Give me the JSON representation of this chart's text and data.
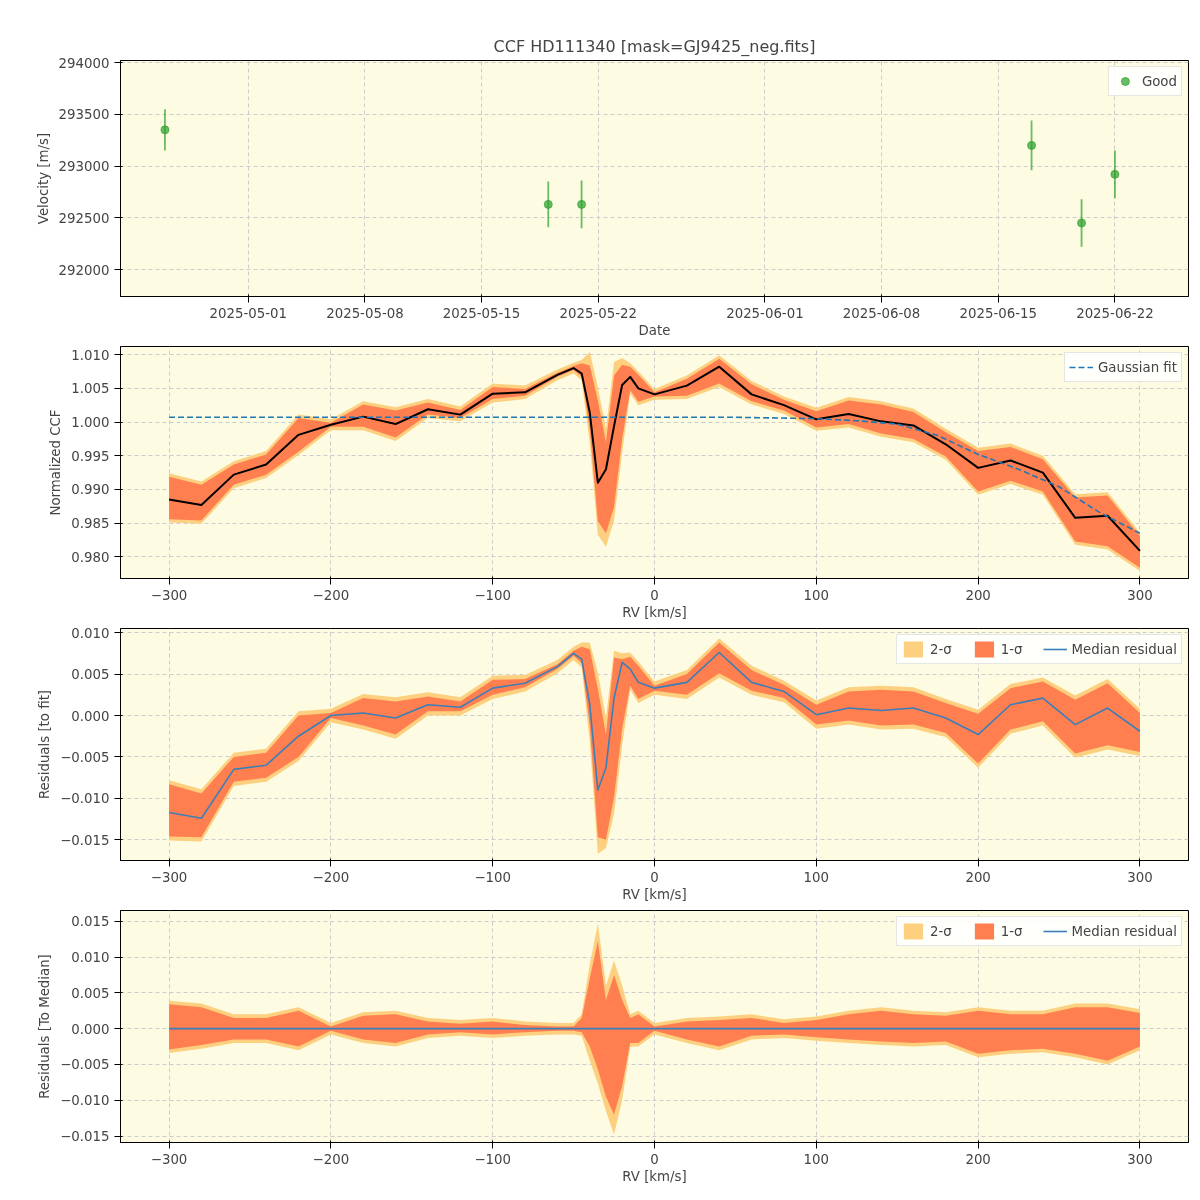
{
  "chart_data": [
    {
      "type": "scatter",
      "title": "CCF HD111340 [mask=GJ9425_neg.fits]",
      "xlabel": "Date",
      "ylabel": "Velocity [m/s]",
      "marker": "circle",
      "grid": true,
      "legend": "top right",
      "x": [
        "2025-04-26",
        "2025-05-19",
        "2025-05-21",
        "2025-06-17",
        "2025-06-20",
        "2025-06-22"
      ],
      "xlim": [
        "2025-04-23T08:00",
        "2025-06-26T10:00"
      ],
      "xticks": [
        "2025-05-01",
        "2025-05-08",
        "2025-05-15",
        "2025-05-22",
        "2025-06-01",
        "2025-06-08",
        "2025-06-15",
        "2025-06-22"
      ],
      "ylim": [
        291740,
        294020
      ],
      "yticks": [
        292000,
        292500,
        293000,
        293500,
        294000
      ],
      "series": [
        {
          "name": "Good",
          "color": "#2ca02c",
          "values": [
            293350,
            292630,
            292630,
            293200,
            292450,
            292920
          ],
          "errors": [
            200,
            220,
            230,
            240,
            230,
            230
          ]
        }
      ]
    },
    {
      "type": "line",
      "xlabel": "RV [km/s]",
      "ylabel": "Normalized CCF",
      "grid": true,
      "legend": "top right",
      "x": [
        -300,
        -280,
        -260,
        -240,
        -220,
        -200,
        -180,
        -160,
        -140,
        -120,
        -100,
        -80,
        -60,
        -50,
        -45,
        -40,
        -35,
        -30,
        -25,
        -20,
        -15,
        -10,
        0,
        20,
        40,
        60,
        80,
        100,
        120,
        140,
        160,
        180,
        200,
        220,
        240,
        260,
        280,
        300
      ],
      "xlim": [
        -330,
        330
      ],
      "xticks": [
        {
          "value": -300,
          "label": "−300"
        },
        {
          "value": -200,
          "label": "−200"
        },
        {
          "value": -100,
          "label": "−100"
        },
        0,
        100,
        200,
        300
      ],
      "ylim": [
        0.9768,
        1.0112
      ],
      "yticks": [
        {
          "value": 0.98,
          "label": "0.980"
        },
        {
          "value": 0.985,
          "label": "0.985"
        },
        {
          "value": 0.99,
          "label": "0.990"
        },
        {
          "value": 0.995,
          "label": "0.995"
        },
        {
          "value": 1.0,
          "label": "1.000"
        },
        {
          "value": 1.005,
          "label": "1.005"
        },
        {
          "value": 1.01,
          "label": "1.010"
        }
      ],
      "series": [
        {
          "type": "area",
          "color": "#fdd080",
          "values": [
            null,
            null,
            null,
            null,
            null,
            null,
            null,
            null,
            null,
            null,
            null,
            null,
            null,
            null,
            null,
            null,
            null,
            null,
            null,
            null,
            null,
            null,
            null,
            null,
            null,
            null,
            null,
            null,
            null,
            null,
            null,
            null,
            null,
            null,
            null,
            null,
            null,
            null
          ],
          "lower": [
            0.9851,
            0.9849,
            0.9902,
            0.9917,
            0.9951,
            0.9988,
            0.9988,
            0.9972,
            1.0006,
            1.0001,
            1.0029,
            1.0034,
            1.0062,
            1.0072,
            1.0062,
            0.9969,
            0.9833,
            0.9815,
            0.9854,
            0.9955,
            1.0042,
            1.0025,
            1.0033,
            1.0034,
            1.0052,
            1.0026,
            1.0012,
            0.9987,
            0.9992,
            0.9978,
            0.997,
            0.9944,
            0.9892,
            0.9908,
            0.9892,
            0.9818,
            0.9811,
            0.9779
          ],
          "upper": [
            0.9924,
            0.9912,
            0.9942,
            0.9957,
            1.0011,
            1.0004,
            1.0031,
            1.0022,
            1.0034,
            1.0023,
            1.0057,
            1.0054,
            1.0078,
            1.0088,
            1.0092,
            1.0104,
            1.0052,
            0.999,
            1.0089,
            1.0095,
            1.0087,
            1.0075,
            1.0049,
            1.0069,
            1.0099,
            1.0061,
            1.0038,
            1.0021,
            1.0037,
            1.0031,
            1.002,
            0.999,
            0.9962,
            0.9968,
            0.995,
            0.9893,
            0.9896,
            0.9836
          ]
        },
        {
          "type": "area",
          "color": "#ff7f50",
          "values": [
            null,
            null,
            null,
            null,
            null,
            null,
            null,
            null,
            null,
            null,
            null,
            null,
            null,
            null,
            null,
            null,
            null,
            null,
            null,
            null,
            null,
            null,
            null,
            null,
            null,
            null,
            null,
            null,
            null,
            null,
            null,
            null,
            null,
            null,
            null,
            null,
            null,
            null
          ],
          "lower": [
            0.9856,
            0.9854,
            0.9907,
            0.9922,
            0.9956,
            0.9993,
            0.9993,
            0.9977,
            1.0011,
            1.0006,
            1.0034,
            1.0039,
            1.0067,
            1.0077,
            1.0067,
            0.9989,
            0.9853,
            0.9835,
            0.9874,
            0.9975,
            1.0047,
            1.003,
            1.0038,
            1.0039,
            1.0057,
            1.0031,
            1.0017,
            0.9992,
            0.9997,
            0.9983,
            0.9975,
            0.9949,
            0.9897,
            0.9913,
            0.9897,
            0.9823,
            0.9816,
            0.9784
          ],
          "upper": [
            0.9919,
            0.9907,
            0.9937,
            0.9952,
            1.0006,
            0.9999,
            1.0026,
            1.0017,
            1.0029,
            1.0018,
            1.0052,
            1.0049,
            1.0073,
            1.0083,
            1.0087,
            1.0084,
            1.0032,
            0.997,
            1.0069,
            1.0085,
            1.0082,
            1.007,
            1.0044,
            1.0064,
            1.0094,
            1.0056,
            1.0033,
            1.0016,
            1.0032,
            1.0026,
            1.0015,
            0.9985,
            0.9957,
            0.9963,
            0.9945,
            0.9888,
            0.9891,
            0.9831
          ]
        },
        {
          "type": "line",
          "color": "#000000",
          "values": [
            0.9885,
            0.9877,
            0.9922,
            0.9937,
            0.9981,
            0.9996,
            1.0008,
            0.9997,
            1.0019,
            1.0011,
            1.0042,
            1.0044,
            1.007,
            1.008,
            1.0072,
            1.0014,
            0.991,
            0.993,
            0.9994,
            1.0055,
            1.0067,
            1.005,
            1.0041,
            1.0054,
            1.0082,
            1.0041,
            1.0025,
            1.0004,
            1.0012,
            1.0001,
            0.9995,
            0.9967,
            0.9932,
            0.9943,
            0.9925,
            0.9858,
            0.9861,
            0.9809
          ]
        },
        {
          "type": "line",
          "name": "Gaussian fit",
          "color": "#1f77b4",
          "line_style": "dashed",
          "x": [
            -300,
            -200,
            -100,
            0,
            50,
            100,
            125,
            150,
            175,
            200,
            225,
            250,
            275,
            300
          ],
          "values": [
            1.0007,
            1.0007,
            1.0007,
            1.0007,
            1.0007,
            1.0005,
            1.0002,
            0.9997,
            0.998,
            0.9952,
            0.993,
            0.9904,
            0.9866,
            0.9835
          ]
        }
      ]
    },
    {
      "type": "line",
      "xlabel": "RV [km/s]",
      "ylabel": "Residuals [to fit]",
      "grid": true,
      "legend": "top right",
      "x": [
        -300,
        -280,
        -260,
        -240,
        -220,
        -200,
        -180,
        -160,
        -140,
        -120,
        -100,
        -80,
        -60,
        -50,
        -45,
        -40,
        -35,
        -30,
        -25,
        -20,
        -15,
        -10,
        0,
        20,
        40,
        60,
        80,
        100,
        120,
        140,
        160,
        180,
        200,
        220,
        240,
        260,
        280,
        300
      ],
      "xlim": [
        -330,
        330
      ],
      "xticks": [
        {
          "value": -300,
          "label": "−300"
        },
        {
          "value": -200,
          "label": "−200"
        },
        {
          "value": -100,
          "label": "−100"
        },
        0,
        100,
        200,
        300
      ],
      "ylim": [
        -0.0175,
        0.0105
      ],
      "yticks": [
        {
          "value": -0.015,
          "label": "−0.015"
        },
        {
          "value": -0.01,
          "label": "−0.010"
        },
        {
          "value": -0.005,
          "label": "−0.005"
        },
        {
          "value": 0,
          "label": "0.000"
        },
        {
          "value": 0.005,
          "label": "0.005"
        },
        {
          "value": 0.01,
          "label": "0.010"
        }
      ],
      "series": [
        {
          "type": "area",
          "name": "2-σ",
          "color": "#fdd080",
          "values": [
            null,
            null,
            null,
            null,
            null,
            null,
            null,
            null,
            null,
            null,
            null,
            null,
            null,
            null,
            null,
            null,
            null,
            null,
            null,
            null,
            null,
            null,
            null,
            null,
            null,
            null,
            null,
            null,
            null,
            null,
            null,
            null,
            null,
            null,
            null,
            null,
            null,
            null
          ],
          "lower": [
            -0.0151,
            -0.0152,
            -0.0085,
            -0.008,
            -0.0055,
            -0.0008,
            -0.0017,
            -0.0028,
            0.0,
            0.0,
            0.002,
            0.0029,
            0.0051,
            0.0067,
            0.0058,
            -0.0032,
            -0.0167,
            -0.016,
            -0.0119,
            -0.0036,
            0.0031,
            0.0015,
            0.0025,
            0.002,
            0.0046,
            0.0025,
            0.0016,
            -0.0016,
            -0.0011,
            -0.0017,
            -0.0016,
            -0.0026,
            -0.0063,
            -0.0022,
            -0.0012,
            -0.0051,
            -0.0041,
            -0.0049
          ],
          "upper": [
            -0.0078,
            -0.0089,
            -0.0045,
            -0.004,
            0.0005,
            0.0008,
            0.0026,
            0.0022,
            0.0028,
            0.0022,
            0.0048,
            0.0049,
            0.0067,
            0.0083,
            0.0088,
            0.0088,
            0.0052,
            -0.0003,
            0.0078,
            0.0075,
            0.0076,
            0.0065,
            0.0041,
            0.0055,
            0.0093,
            0.006,
            0.0042,
            0.0018,
            0.0034,
            0.0036,
            0.0034,
            0.002,
            0.0007,
            0.0038,
            0.0046,
            0.0024,
            0.0044,
            0.0008
          ]
        },
        {
          "type": "area",
          "name": "1-σ",
          "color": "#ff7f50",
          "values": [
            null,
            null,
            null,
            null,
            null,
            null,
            null,
            null,
            null,
            null,
            null,
            null,
            null,
            null,
            null,
            null,
            null,
            null,
            null,
            null,
            null,
            null,
            null,
            null,
            null,
            null,
            null,
            null,
            null,
            null,
            null,
            null,
            null,
            null,
            null,
            null,
            null,
            null
          ],
          "lower": [
            -0.0146,
            -0.0147,
            -0.008,
            -0.0075,
            -0.005,
            -0.0003,
            -0.0012,
            -0.0023,
            0.0005,
            0.0005,
            0.0025,
            0.0034,
            0.0056,
            0.0072,
            0.0063,
            -0.0012,
            -0.0147,
            -0.015,
            -0.0099,
            -0.0016,
            0.0036,
            0.002,
            0.003,
            0.0025,
            0.0051,
            0.003,
            0.0021,
            -0.0011,
            -0.0006,
            -0.0012,
            -0.0011,
            -0.0021,
            -0.0058,
            -0.0017,
            -0.0007,
            -0.0046,
            -0.0036,
            -0.0044
          ],
          "upper": [
            -0.0083,
            -0.0094,
            -0.005,
            -0.0045,
            0.0,
            0.0003,
            0.0021,
            0.0017,
            0.0023,
            0.0017,
            0.0043,
            0.0044,
            0.0062,
            0.0078,
            0.0083,
            0.008,
            0.0032,
            -0.0023,
            0.007,
            0.0068,
            0.0071,
            0.006,
            0.0036,
            0.005,
            0.0088,
            0.0055,
            0.0037,
            0.0013,
            0.0029,
            0.0031,
            0.0029,
            0.0015,
            0.0002,
            0.0033,
            0.0041,
            0.0019,
            0.0039,
            0.0003
          ]
        },
        {
          "type": "line",
          "name": "Median residual",
          "color": "#3a7fb8",
          "values": [
            -0.0117,
            -0.0124,
            -0.0065,
            -0.006,
            -0.0025,
            0.0,
            0.0003,
            -0.0003,
            0.0013,
            0.001,
            0.0033,
            0.0039,
            0.0059,
            0.0075,
            0.0068,
            0.0013,
            -0.009,
            -0.0063,
            0.0021,
            0.0064,
            0.0056,
            0.004,
            0.0033,
            0.004,
            0.0076,
            0.004,
            0.0029,
            0.0001,
            0.0009,
            0.0006,
            0.0009,
            -0.0003,
            -0.0023,
            0.0013,
            0.0021,
            -0.0011,
            0.0009,
            -0.0019
          ]
        }
      ]
    },
    {
      "type": "line",
      "xlabel": "RV [km/s]",
      "ylabel": "Residuals [To Median]",
      "grid": true,
      "legend": "top right",
      "x": [
        -300,
        -280,
        -260,
        -240,
        -220,
        -200,
        -180,
        -160,
        -140,
        -120,
        -100,
        -80,
        -60,
        -50,
        -45,
        -40,
        -35,
        -30,
        -25,
        -20,
        -15,
        -10,
        0,
        20,
        40,
        60,
        80,
        100,
        120,
        140,
        160,
        180,
        200,
        220,
        240,
        260,
        280,
        300
      ],
      "xlim": [
        -330,
        330
      ],
      "xticks": [
        {
          "value": -300,
          "label": "−300"
        },
        {
          "value": -200,
          "label": "−200"
        },
        {
          "value": -100,
          "label": "−100"
        },
        0,
        100,
        200,
        300
      ],
      "ylim": [
        -0.0159,
        0.0165
      ],
      "yticks": [
        {
          "value": -0.015,
          "label": "−0.015"
        },
        {
          "value": -0.01,
          "label": "−0.010"
        },
        {
          "value": -0.005,
          "label": "−0.005"
        },
        {
          "value": 0,
          "label": "0.000"
        },
        {
          "value": 0.005,
          "label": "0.005"
        },
        {
          "value": 0.01,
          "label": "0.010"
        },
        {
          "value": 0.015,
          "label": "0.015"
        }
      ],
      "series": [
        {
          "type": "area",
          "name": "2-σ",
          "color": "#fdd080",
          "values": [
            null,
            null,
            null,
            null,
            null,
            null,
            null,
            null,
            null,
            null,
            null,
            null,
            null,
            null,
            null,
            null,
            null,
            null,
            null,
            null,
            null,
            null,
            null,
            null,
            null,
            null,
            null,
            null,
            null,
            null,
            null,
            null,
            null,
            null,
            null,
            null,
            null,
            null
          ],
          "lower": [
            -0.0034,
            -0.0028,
            -0.002,
            -0.002,
            -0.003,
            -0.0008,
            -0.002,
            -0.0025,
            -0.0013,
            -0.001,
            -0.0013,
            -0.001,
            -0.0008,
            -0.0008,
            -0.001,
            -0.0045,
            -0.0077,
            -0.0115,
            -0.0148,
            -0.01,
            -0.0025,
            -0.0025,
            -0.0008,
            -0.002,
            -0.003,
            -0.0015,
            -0.0013,
            -0.0017,
            -0.002,
            -0.0023,
            -0.0025,
            -0.0023,
            -0.004,
            -0.0035,
            -0.0033,
            -0.004,
            -0.005,
            -0.003
          ],
          "upper": [
            0.0039,
            0.0035,
            0.002,
            0.002,
            0.003,
            0.0008,
            0.0023,
            0.0025,
            0.0015,
            0.0012,
            0.0015,
            0.001,
            0.0008,
            0.0008,
            0.002,
            0.009,
            0.0147,
            0.006,
            0.0095,
            0.006,
            0.002,
            0.0025,
            0.0008,
            0.0015,
            0.0017,
            0.002,
            0.0013,
            0.0017,
            0.0025,
            0.003,
            0.0025,
            0.0023,
            0.003,
            0.0025,
            0.0025,
            0.0035,
            0.0035,
            0.0027
          ]
        },
        {
          "type": "area",
          "name": "1-σ",
          "color": "#ff7f50",
          "values": [
            null,
            null,
            null,
            null,
            null,
            null,
            null,
            null,
            null,
            null,
            null,
            null,
            null,
            null,
            null,
            null,
            null,
            null,
            null,
            null,
            null,
            null,
            null,
            null,
            null,
            null,
            null,
            null,
            null,
            null,
            null,
            null,
            null,
            null,
            null,
            null,
            null,
            null
          ],
          "lower": [
            -0.0029,
            -0.0023,
            -0.0015,
            -0.0015,
            -0.0025,
            -0.0003,
            -0.0015,
            -0.002,
            -0.0008,
            -0.0005,
            -0.0008,
            -0.0005,
            -0.0003,
            -0.0003,
            -0.0005,
            -0.0025,
            -0.0057,
            -0.0095,
            -0.012,
            -0.008,
            -0.002,
            -0.002,
            -0.0003,
            -0.0015,
            -0.0025,
            -0.001,
            -0.0008,
            -0.0012,
            -0.0015,
            -0.0018,
            -0.002,
            -0.0018,
            -0.0035,
            -0.003,
            -0.0028,
            -0.0035,
            -0.0045,
            -0.0025
          ],
          "upper": [
            0.0034,
            0.003,
            0.0015,
            0.0015,
            0.0025,
            0.0003,
            0.0018,
            0.002,
            0.001,
            0.0007,
            0.001,
            0.0005,
            0.0003,
            0.0003,
            0.0015,
            0.007,
            0.0122,
            0.004,
            0.0075,
            0.004,
            0.0015,
            0.002,
            0.0003,
            0.001,
            0.0012,
            0.0015,
            0.0008,
            0.0012,
            0.002,
            0.0025,
            0.002,
            0.0018,
            0.0025,
            0.002,
            0.002,
            0.003,
            0.003,
            0.0022
          ]
        },
        {
          "type": "line",
          "name": "Median residual",
          "color": "#3a7fb8",
          "values": [
            0,
            0,
            0,
            0,
            0,
            0,
            0,
            0,
            0,
            0,
            0,
            0,
            0,
            0,
            0,
            0,
            0,
            0,
            0,
            0,
            0,
            0,
            0,
            0,
            0,
            0,
            0,
            0,
            0,
            0,
            0,
            0,
            0,
            0,
            0,
            0,
            0,
            0
          ]
        }
      ]
    }
  ]
}
